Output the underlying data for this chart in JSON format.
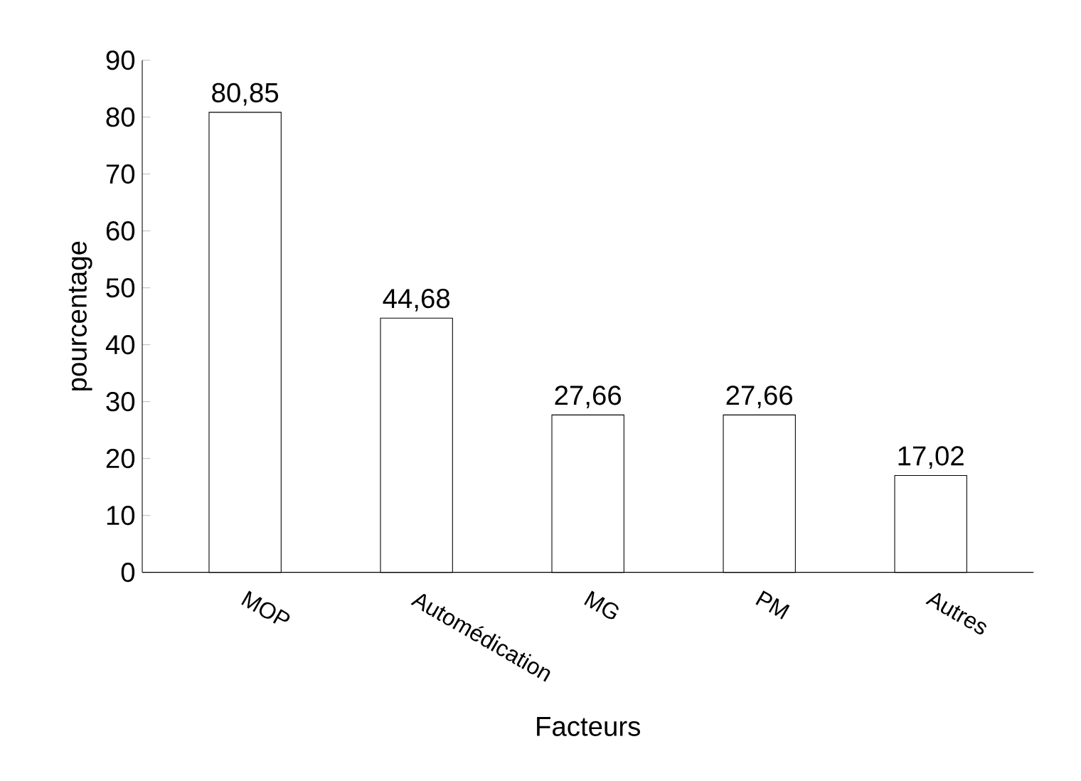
{
  "chart_data": {
    "type": "bar",
    "xlabel": "Facteurs",
    "ylabel": "pourcentage",
    "categories": [
      "MOP",
      "Automédication",
      "MG",
      "PM",
      "Autres"
    ],
    "values": [
      80.85,
      44.68,
      27.66,
      27.66,
      17.02
    ],
    "value_labels": [
      "80,85",
      "44,68",
      "27,66",
      "27,66",
      "17,02"
    ],
    "color": "#ffffff",
    "ylim": [
      0,
      90
    ],
    "yticks": [
      0,
      10,
      20,
      30,
      40,
      50,
      60,
      70,
      80,
      90
    ],
    "grid": false
  }
}
